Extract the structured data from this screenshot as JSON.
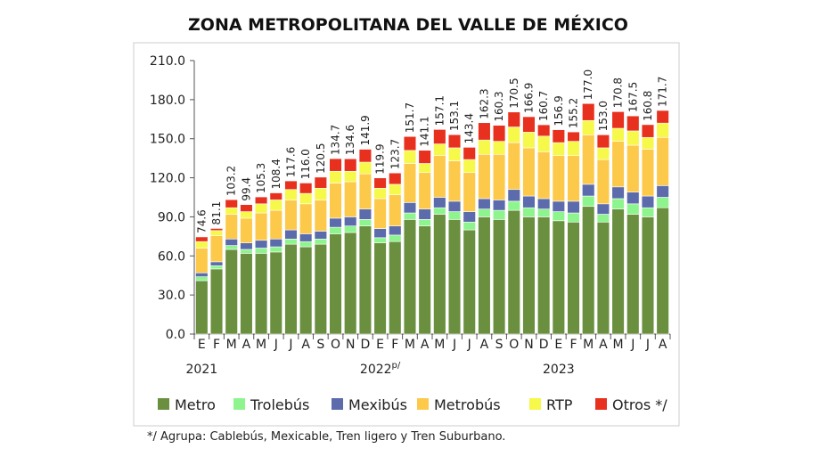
{
  "chart_data": {
    "type": "bar",
    "stacked": true,
    "title": "Zona Metropolitana del Valle de México",
    "ylim": [
      0,
      210
    ],
    "yticks": [
      "0.0",
      "30.0",
      "60.0",
      "90.0",
      "120.0",
      "150.0",
      "180.0",
      "210.0"
    ],
    "categories": [
      "E",
      "F",
      "M",
      "A",
      "M",
      "J",
      "J",
      "A",
      "S",
      "O",
      "N",
      "D",
      "E",
      "F",
      "M",
      "A",
      "M",
      "J",
      "J",
      "A",
      "S",
      "O",
      "N",
      "D",
      "E",
      "F",
      "M",
      "A",
      "M",
      "J",
      "J",
      "A"
    ],
    "years": [
      {
        "label": "2021",
        "start_index": 0
      },
      {
        "label": "2022",
        "sup": "p/",
        "start_index": 12
      },
      {
        "label": "2023",
        "start_index": 24
      }
    ],
    "totals": [
      "74.6",
      "81.1",
      "103.2",
      "99.4",
      "105.3",
      "108.4",
      "117.6",
      "116.0",
      "120.5",
      "134.7",
      "134.6",
      "141.9",
      "119.9",
      "123.7",
      "151.7",
      "141.1",
      "157.1",
      "153.1",
      "143.4",
      "162.3",
      "160.3",
      "170.5",
      "166.9",
      "160.7",
      "156.9",
      "155.2",
      "177.0",
      "153.0",
      "170.8",
      "167.5",
      "160.8",
      "171.7"
    ],
    "series": [
      {
        "name": "Metro",
        "color": "#6a8f3f",
        "values": [
          41,
          50,
          65,
          62,
          62,
          63,
          69,
          67,
          69,
          77,
          78,
          83,
          70,
          71,
          88,
          83,
          92,
          88,
          80,
          90,
          88,
          95,
          90,
          90,
          87,
          86,
          98,
          86,
          96,
          92,
          90,
          97
        ]
      },
      {
        "name": "Trolebús",
        "color": "#8ef58e",
        "values": [
          3,
          2.5,
          3,
          3,
          4,
          4,
          4,
          4,
          4,
          5,
          5,
          5,
          4,
          5,
          5,
          5,
          5,
          6,
          6,
          6,
          7,
          7,
          7,
          6,
          7,
          7,
          8,
          6,
          8,
          8,
          7,
          8
        ]
      },
      {
        "name": "Mexibús",
        "color": "#5b6bab",
        "values": [
          3,
          3,
          5,
          5,
          6,
          6,
          7,
          6,
          6,
          7,
          7,
          8,
          7,
          7,
          8,
          8,
          8,
          8,
          8,
          8,
          8,
          9,
          9,
          8,
          8,
          9,
          9,
          8,
          9,
          9,
          9,
          9
        ]
      },
      {
        "name": "Metrobús",
        "color": "#fdc94b",
        "values": [
          19,
          20,
          19,
          19,
          21,
          22,
          23,
          23,
          24,
          27,
          27,
          27,
          23,
          24,
          30,
          28,
          32,
          31,
          30,
          34,
          35,
          36,
          37,
          36,
          35,
          35,
          38,
          34,
          35,
          36,
          36,
          37
        ]
      },
      {
        "name": "RTP",
        "color": "#f6f84a",
        "values": [
          5,
          4,
          5,
          5,
          7,
          8,
          8,
          8,
          9,
          9,
          8,
          9,
          8,
          8,
          10,
          7,
          9,
          10,
          10,
          11,
          10,
          12,
          12,
          12,
          10,
          11,
          11,
          9,
          10,
          11,
          9,
          11
        ]
      },
      {
        "name": "Otros */",
        "color": "#e8301e",
        "values": [
          3.6,
          1.6,
          6.2,
          5.4,
          5.3,
          5.4,
          6.6,
          8.0,
          8.5,
          9.7,
          9.6,
          9.9,
          7.9,
          8.7,
          10.7,
          10.1,
          11.1,
          10.1,
          9.4,
          13.3,
          12.3,
          11.5,
          11.9,
          8.7,
          9.9,
          7.2,
          13.0,
          10.0,
          12.8,
          11.5,
          9.8,
          9.7
        ]
      }
    ],
    "legend_position": "bottom",
    "footnote": "*/ Agrupa: Cablebús, Mexicable, Tren ligero y Tren Suburbano."
  }
}
